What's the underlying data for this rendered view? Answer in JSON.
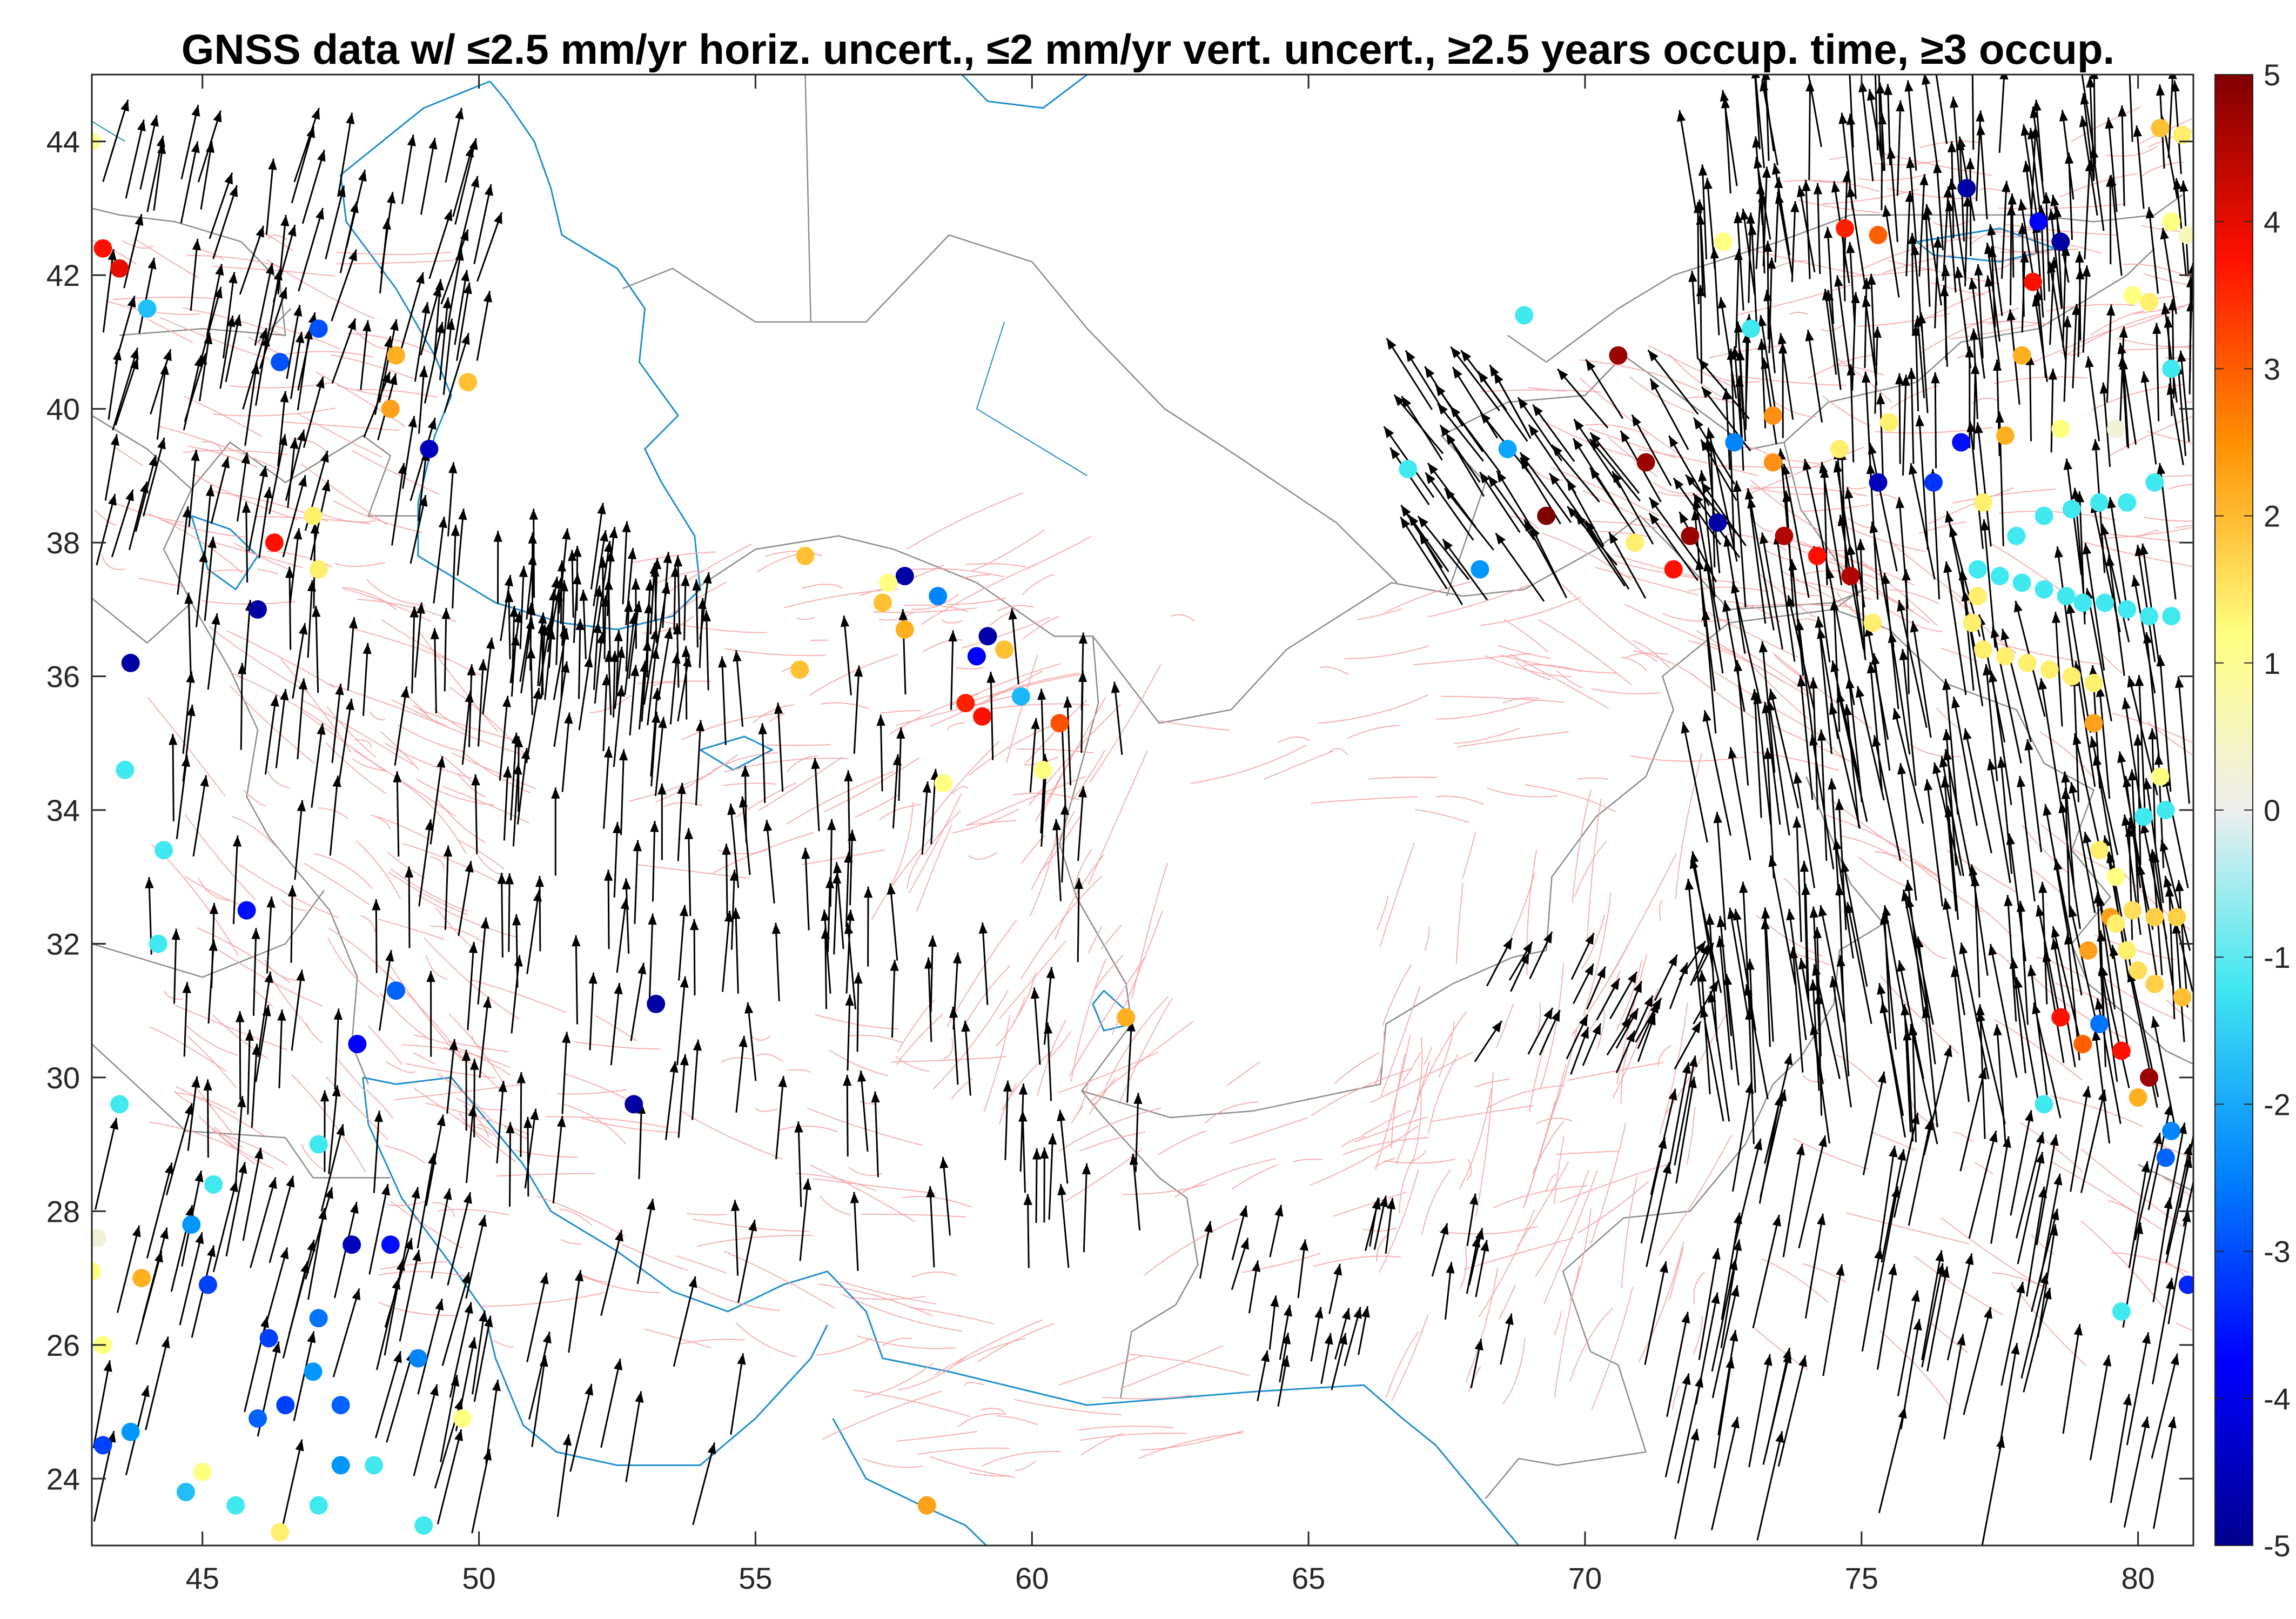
{
  "title": "GNSS data w/ ≤2.5 mm/yr horiz. uncert., ≤2 mm/yr vert. uncert., ≥2.5 years occup. time, ≥3 occup.",
  "chart_data": {
    "type": "scatter",
    "title": "GNSS data w/ ≤2.5 mm/yr horiz. uncert., ≤2 mm/yr vert. uncert., ≥2.5 years occup. time, ≥3 occup.",
    "xlabel": "",
    "ylabel": "",
    "xlim": [
      43,
      81
    ],
    "ylim": [
      23,
      45
    ],
    "x_ticks": [
      "45",
      "50",
      "55",
      "60",
      "65",
      "70",
      "75",
      "80"
    ],
    "y_ticks": [
      "24",
      "26",
      "28",
      "30",
      "32",
      "34",
      "36",
      "38",
      "40",
      "42",
      "44"
    ],
    "colorbar": {
      "clim": [
        -5,
        5
      ],
      "ticks": [
        "-5",
        "-4",
        "-3",
        "-2",
        "-1",
        "0",
        "1",
        "2",
        "3",
        "4",
        "5"
      ],
      "colormap": [
        "#00008f",
        "#0020ff",
        "#00a0ff",
        "#40e0f0",
        "#c0f0f0",
        "#eeeeee",
        "#f8f8a0",
        "#ffd040",
        "#ff8000",
        "#ff2000",
        "#800000"
      ]
    },
    "background_colors": {
      "coastline": "#1f8fcf",
      "borders": "#8c8c8c",
      "faults": "#f4a3a3",
      "arrow": "#000000"
    },
    "points": [
      {
        "lon": 43.2,
        "lat": 42.4,
        "v": 4.0
      },
      {
        "lon": 43.5,
        "lat": 42.1,
        "v": 4.2
      },
      {
        "lon": 43.0,
        "lat": 44.0,
        "v": 0.8
      },
      {
        "lon": 44.0,
        "lat": 41.5,
        "v": -1.5
      },
      {
        "lon": 43.7,
        "lat": 36.2,
        "v": -4.8
      },
      {
        "lon": 43.6,
        "lat": 34.6,
        "v": -1.0
      },
      {
        "lon": 44.3,
        "lat": 33.4,
        "v": -1.0
      },
      {
        "lon": 44.2,
        "lat": 32.0,
        "v": -1.0
      },
      {
        "lon": 45.8,
        "lat": 32.5,
        "v": -3.8
      },
      {
        "lon": 46.0,
        "lat": 37.0,
        "v": -4.8
      },
      {
        "lon": 46.3,
        "lat": 38.0,
        "v": 4.0
      },
      {
        "lon": 46.4,
        "lat": 40.7,
        "v": -2.8
      },
      {
        "lon": 47.1,
        "lat": 41.2,
        "v": -2.8
      },
      {
        "lon": 48.5,
        "lat": 40.8,
        "v": 2.0
      },
      {
        "lon": 48.4,
        "lat": 40.0,
        "v": 2.2
      },
      {
        "lon": 49.1,
        "lat": 39.4,
        "v": -4.6
      },
      {
        "lon": 49.8,
        "lat": 40.4,
        "v": 1.8
      },
      {
        "lon": 47.1,
        "lat": 37.6,
        "v": 1.2
      },
      {
        "lon": 47.0,
        "lat": 38.4,
        "v": 1.2
      },
      {
        "lon": 48.5,
        "lat": 31.3,
        "v": -2.6
      },
      {
        "lon": 47.8,
        "lat": 30.5,
        "v": -4.0
      },
      {
        "lon": 43.5,
        "lat": 29.6,
        "v": -1.0
      },
      {
        "lon": 45.2,
        "lat": 28.4,
        "v": -1.0
      },
      {
        "lon": 47.1,
        "lat": 29.0,
        "v": -1.0
      },
      {
        "lon": 47.7,
        "lat": 27.5,
        "v": -4.6
      },
      {
        "lon": 48.4,
        "lat": 27.5,
        "v": -3.8
      },
      {
        "lon": 44.8,
        "lat": 27.8,
        "v": -2.0
      },
      {
        "lon": 43.0,
        "lat": 27.1,
        "v": 1.0
      },
      {
        "lon": 43.1,
        "lat": 27.6,
        "v": 0.2
      },
      {
        "lon": 43.9,
        "lat": 27.0,
        "v": 2.0
      },
      {
        "lon": 45.1,
        "lat": 26.9,
        "v": -3.0
      },
      {
        "lon": 46.2,
        "lat": 26.1,
        "v": -3.0
      },
      {
        "lon": 47.1,
        "lat": 26.4,
        "v": -2.4
      },
      {
        "lon": 43.2,
        "lat": 24.5,
        "v": -3.0
      },
      {
        "lon": 43.7,
        "lat": 24.7,
        "v": -2.0
      },
      {
        "lon": 44.7,
        "lat": 23.8,
        "v": -1.5
      },
      {
        "lon": 45.6,
        "lat": 23.6,
        "v": -1.0
      },
      {
        "lon": 46.4,
        "lat": 23.2,
        "v": 1.2
      },
      {
        "lon": 47.1,
        "lat": 23.6,
        "v": -1.0
      },
      {
        "lon": 47.5,
        "lat": 24.2,
        "v": -2.0
      },
      {
        "lon": 48.1,
        "lat": 24.2,
        "v": -1.0
      },
      {
        "lon": 49.0,
        "lat": 23.3,
        "v": -1.0
      },
      {
        "lon": 48.9,
        "lat": 25.8,
        "v": -2.2
      },
      {
        "lon": 49.7,
        "lat": 24.9,
        "v": 1.0
      },
      {
        "lon": 46.0,
        "lat": 24.9,
        "v": -2.6
      },
      {
        "lon": 46.5,
        "lat": 25.1,
        "v": -3.0
      },
      {
        "lon": 47.0,
        "lat": 25.6,
        "v": -2.0
      },
      {
        "lon": 47.5,
        "lat": 25.1,
        "v": -2.6
      },
      {
        "lon": 43.2,
        "lat": 26.0,
        "v": 1.0
      },
      {
        "lon": 45.0,
        "lat": 24.1,
        "v": 1.0
      },
      {
        "lon": 52.8,
        "lat": 29.6,
        "v": -4.8
      },
      {
        "lon": 53.2,
        "lat": 31.1,
        "v": -4.8
      },
      {
        "lon": 55.9,
        "lat": 37.8,
        "v": 1.8
      },
      {
        "lon": 55.8,
        "lat": 36.1,
        "v": 1.8
      },
      {
        "lon": 57.3,
        "lat": 37.1,
        "v": 1.8
      },
      {
        "lon": 57.7,
        "lat": 37.5,
        "v": -4.8
      },
      {
        "lon": 58.3,
        "lat": 37.2,
        "v": -2.2
      },
      {
        "lon": 57.7,
        "lat": 36.7,
        "v": 2.0
      },
      {
        "lon": 59.2,
        "lat": 36.6,
        "v": -4.8
      },
      {
        "lon": 59.5,
        "lat": 36.4,
        "v": 1.8
      },
      {
        "lon": 59.0,
        "lat": 36.3,
        "v": -4.0
      },
      {
        "lon": 58.8,
        "lat": 35.6,
        "v": 3.8
      },
      {
        "lon": 59.1,
        "lat": 35.4,
        "v": 4.0
      },
      {
        "lon": 59.8,
        "lat": 35.7,
        "v": -1.6
      },
      {
        "lon": 60.5,
        "lat": 35.3,
        "v": 3.2
      },
      {
        "lon": 57.4,
        "lat": 37.4,
        "v": 1.0
      },
      {
        "lon": 60.2,
        "lat": 34.6,
        "v": 1.0
      },
      {
        "lon": 58.4,
        "lat": 34.4,
        "v": 1.0
      },
      {
        "lon": 61.7,
        "lat": 30.9,
        "v": 2.0
      },
      {
        "lon": 58.1,
        "lat": 23.6,
        "v": 2.2
      },
      {
        "lon": 66.8,
        "lat": 39.1,
        "v": -1.0
      },
      {
        "lon": 68.1,
        "lat": 37.6,
        "v": -2.0
      },
      {
        "lon": 68.6,
        "lat": 39.4,
        "v": -1.8
      },
      {
        "lon": 69.3,
        "lat": 38.4,
        "v": 5.0
      },
      {
        "lon": 70.6,
        "lat": 40.8,
        "v": 4.8
      },
      {
        "lon": 71.1,
        "lat": 39.2,
        "v": 4.8
      },
      {
        "lon": 71.9,
        "lat": 38.1,
        "v": 4.8
      },
      {
        "lon": 72.4,
        "lat": 38.3,
        "v": -4.8
      },
      {
        "lon": 73.6,
        "lat": 38.1,
        "v": 4.6
      },
      {
        "lon": 72.7,
        "lat": 39.5,
        "v": -2.2
      },
      {
        "lon": 73.4,
        "lat": 39.9,
        "v": 2.4
      },
      {
        "lon": 73.4,
        "lat": 39.2,
        "v": 2.4
      },
      {
        "lon": 74.2,
        "lat": 37.8,
        "v": 4.0
      },
      {
        "lon": 74.8,
        "lat": 37.5,
        "v": 4.6
      },
      {
        "lon": 71.6,
        "lat": 37.6,
        "v": 4.0
      },
      {
        "lon": 74.7,
        "lat": 42.7,
        "v": 3.8
      },
      {
        "lon": 75.3,
        "lat": 42.6,
        "v": 3.0
      },
      {
        "lon": 76.9,
        "lat": 43.3,
        "v": -4.8
      },
      {
        "lon": 78.2,
        "lat": 42.8,
        "v": -4.0
      },
      {
        "lon": 78.6,
        "lat": 42.5,
        "v": -4.8
      },
      {
        "lon": 78.1,
        "lat": 41.9,
        "v": 4.0
      },
      {
        "lon": 75.3,
        "lat": 38.9,
        "v": -4.6
      },
      {
        "lon": 76.3,
        "lat": 38.9,
        "v": -3.2
      },
      {
        "lon": 76.8,
        "lat": 39.5,
        "v": -3.8
      },
      {
        "lon": 72.5,
        "lat": 42.5,
        "v": 1.0
      },
      {
        "lon": 73.0,
        "lat": 41.2,
        "v": -1.0
      },
      {
        "lon": 77.6,
        "lat": 39.6,
        "v": 2.0
      },
      {
        "lon": 77.9,
        "lat": 40.8,
        "v": 2.0
      },
      {
        "lon": 79.2,
        "lat": 35.3,
        "v": 2.2
      },
      {
        "lon": 79.5,
        "lat": 32.4,
        "v": 2.2
      },
      {
        "lon": 79.1,
        "lat": 31.9,
        "v": 2.2
      },
      {
        "lon": 78.3,
        "lat": 29.6,
        "v": -1.0
      },
      {
        "lon": 80.6,
        "lat": 29.2,
        "v": -2.2
      },
      {
        "lon": 80.5,
        "lat": 28.8,
        "v": -2.6
      },
      {
        "lon": 80.9,
        "lat": 26.9,
        "v": -3.4
      },
      {
        "lon": 80.2,
        "lat": 30.0,
        "v": 4.8
      },
      {
        "lon": 79.7,
        "lat": 30.4,
        "v": 4.0
      },
      {
        "lon": 80.0,
        "lat": 29.7,
        "v": 2.0
      },
      {
        "lon": 79.3,
        "lat": 30.8,
        "v": -2.4
      },
      {
        "lon": 78.6,
        "lat": 30.9,
        "v": 4.0
      },
      {
        "lon": 79.0,
        "lat": 30.5,
        "v": 3.0
      },
      {
        "lon": 80.8,
        "lat": 31.2,
        "v": 1.8
      },
      {
        "lon": 80.3,
        "lat": 31.4,
        "v": 1.6
      },
      {
        "lon": 80.0,
        "lat": 31.6,
        "v": 1.4
      },
      {
        "lon": 79.8,
        "lat": 31.9,
        "v": 1.2
      },
      {
        "lon": 79.6,
        "lat": 32.3,
        "v": 1.2
      },
      {
        "lon": 79.9,
        "lat": 32.5,
        "v": 1.4
      },
      {
        "lon": 80.3,
        "lat": 32.4,
        "v": 1.6
      },
      {
        "lon": 80.7,
        "lat": 32.4,
        "v": 1.6
      },
      {
        "lon": 79.3,
        "lat": 33.4,
        "v": 1.2
      },
      {
        "lon": 79.6,
        "lat": 33.0,
        "v": 1.0
      },
      {
        "lon": 80.4,
        "lat": 34.5,
        "v": 1.0
      },
      {
        "lon": 80.1,
        "lat": 33.9,
        "v": -1.0
      },
      {
        "lon": 80.5,
        "lat": 34.0,
        "v": -1.0
      },
      {
        "lon": 80.6,
        "lat": 36.9,
        "v": -1.0
      },
      {
        "lon": 80.2,
        "lat": 36.9,
        "v": -1.0
      },
      {
        "lon": 79.8,
        "lat": 37.0,
        "v": -1.0
      },
      {
        "lon": 79.4,
        "lat": 37.1,
        "v": -1.0
      },
      {
        "lon": 79.0,
        "lat": 37.1,
        "v": -1.0
      },
      {
        "lon": 78.7,
        "lat": 37.2,
        "v": -1.0
      },
      {
        "lon": 78.3,
        "lat": 37.3,
        "v": -1.0
      },
      {
        "lon": 77.9,
        "lat": 37.4,
        "v": -1.0
      },
      {
        "lon": 77.5,
        "lat": 37.5,
        "v": -1.0
      },
      {
        "lon": 77.1,
        "lat": 37.6,
        "v": -1.0
      },
      {
        "lon": 77.1,
        "lat": 37.2,
        "v": 1.2
      },
      {
        "lon": 77.0,
        "lat": 36.8,
        "v": 1.2
      },
      {
        "lon": 77.2,
        "lat": 36.4,
        "v": 1.2
      },
      {
        "lon": 77.6,
        "lat": 36.3,
        "v": 1.2
      },
      {
        "lon": 78.0,
        "lat": 36.2,
        "v": 1.2
      },
      {
        "lon": 78.4,
        "lat": 36.1,
        "v": 1.2
      },
      {
        "lon": 78.8,
        "lat": 36.0,
        "v": 1.2
      },
      {
        "lon": 79.2,
        "lat": 35.9,
        "v": 1.2
      },
      {
        "lon": 77.8,
        "lat": 38.1,
        "v": -1.0
      },
      {
        "lon": 78.3,
        "lat": 38.4,
        "v": -1.0
      },
      {
        "lon": 78.8,
        "lat": 38.5,
        "v": -1.0
      },
      {
        "lon": 79.3,
        "lat": 38.6,
        "v": -1.0
      },
      {
        "lon": 79.8,
        "lat": 38.6,
        "v": -1.0
      },
      {
        "lon": 80.3,
        "lat": 38.9,
        "v": -1.0
      },
      {
        "lon": 80.8,
        "lat": 44.1,
        "v": 1.2
      },
      {
        "lon": 80.4,
        "lat": 44.2,
        "v": 1.8
      },
      {
        "lon": 80.2,
        "lat": 41.6,
        "v": 1.2
      },
      {
        "lon": 80.6,
        "lat": 40.6,
        "v": -1.0
      },
      {
        "lon": 79.6,
        "lat": 39.7,
        "v": 0.2
      },
      {
        "lon": 78.6,
        "lat": 39.7,
        "v": 1.0
      },
      {
        "lon": 80.9,
        "lat": 42.6,
        "v": 0.5
      },
      {
        "lon": 79.9,
        "lat": 41.7,
        "v": 1.0
      },
      {
        "lon": 80.6,
        "lat": 42.8,
        "v": 1.0
      },
      {
        "lon": 77.2,
        "lat": 38.6,
        "v": 1.2
      },
      {
        "lon": 75.2,
        "lat": 36.8,
        "v": 1.2
      },
      {
        "lon": 75.5,
        "lat": 39.8,
        "v": 1.2
      },
      {
        "lon": 74.6,
        "lat": 39.4,
        "v": 1.2
      },
      {
        "lon": 70.9,
        "lat": 38.0,
        "v": 1.2
      },
      {
        "lon": 68.9,
        "lat": 41.4,
        "v": -1.0
      },
      {
        "lon": 79.7,
        "lat": 26.5,
        "v": -1.0
      }
    ],
    "arrows": [
      {
        "lon": 44.0,
        "lat": 42.6,
        "ve": 0.5,
        "vn": 0.8
      }
    ]
  }
}
